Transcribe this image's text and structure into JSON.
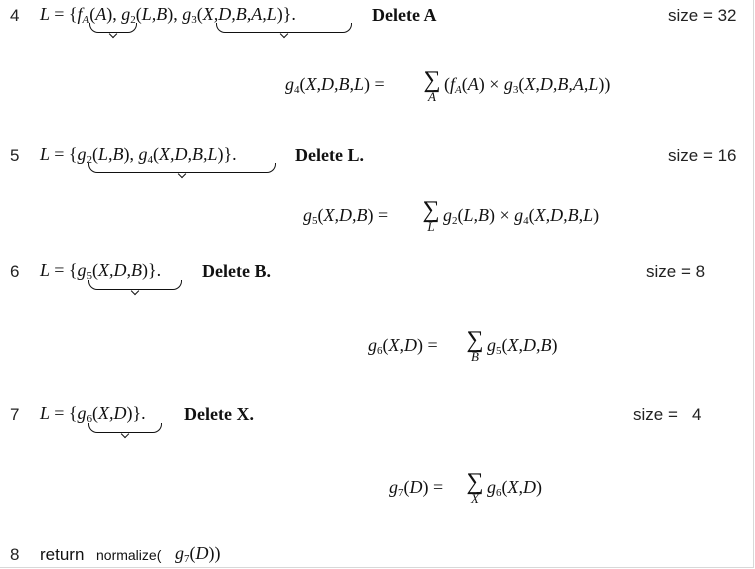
{
  "steps": [
    {
      "num": "4",
      "line": "L = {fA(A), g2(L,B), g3(X,D,B,A,L)}.",
      "action": "Delete A",
      "size": "size = 32",
      "equation": "g4(X,D,B,L) = Σ_A (fA(A) × g3(X,D,B,A,L))"
    },
    {
      "num": "5",
      "line": "L = {g2(L,B), g4(X,D,B,L)}.",
      "action": "Delete L.",
      "size": "size = 16",
      "equation": "g5(X,D,B) = Σ_L g2(L,B) × g4(X,D,B,L)"
    },
    {
      "num": "6",
      "line": "L = {g5(X,D,B)}.",
      "action": "Delete B.",
      "size": "size = 8",
      "equation": "g6(X,D) = Σ_B g5(X,D,B)"
    },
    {
      "num": "7",
      "line": "L = {g6(X,D)}.",
      "action": "Delete X.",
      "size": "size =   4",
      "equation": "g7(D) = Σ_X g6(X,D)"
    }
  ],
  "final": {
    "num": "8",
    "text": "return",
    "func": "normalize(",
    "arg": "g7(D))"
  }
}
